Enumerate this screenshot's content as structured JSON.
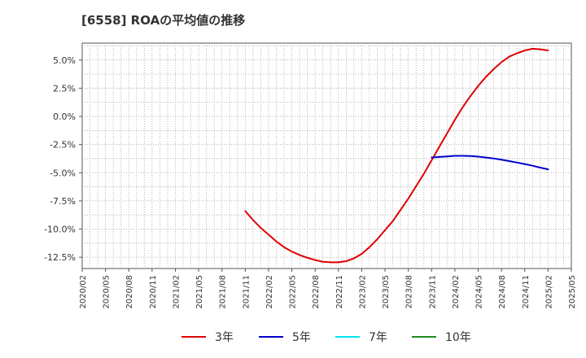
{
  "chart_data": {
    "type": "line",
    "title": "[6558]  ROAの平均値の推移",
    "xlabel": "",
    "ylabel": "",
    "ylim": [
      -13.5,
      6.5
    ],
    "yticks": [
      5.0,
      2.5,
      0.0,
      -2.5,
      -5.0,
      -7.5,
      -10.0,
      -12.5
    ],
    "ytick_labels": [
      "5.0%",
      "2.5%",
      "0.0%",
      "-2.5%",
      "-5.0%",
      "-7.5%",
      "-10.0%",
      "-12.5%"
    ],
    "x_range": [
      "2020/02",
      "2025/05"
    ],
    "xtick_labels": [
      "2020/02",
      "2020/05",
      "2020/08",
      "2020/11",
      "2021/02",
      "2021/05",
      "2021/08",
      "2021/11",
      "2022/02",
      "2022/05",
      "2022/08",
      "2022/11",
      "2023/02",
      "2023/05",
      "2023/08",
      "2023/11",
      "2024/02",
      "2024/05",
      "2024/08",
      "2024/11",
      "2025/02",
      "2025/05"
    ],
    "grid": true,
    "legend_position": "bottom",
    "series": [
      {
        "name": "3年",
        "color": "#dd0000",
        "x": [
          "2021/11",
          "2021/12",
          "2022/01",
          "2022/02",
          "2022/03",
          "2022/04",
          "2022/05",
          "2022/06",
          "2022/07",
          "2022/08",
          "2022/09",
          "2022/10",
          "2022/11",
          "2022/12",
          "2023/01",
          "2023/02",
          "2023/03",
          "2023/04",
          "2023/05",
          "2023/06",
          "2023/07",
          "2023/08",
          "2023/09",
          "2023/10",
          "2023/11",
          "2023/12",
          "2024/01",
          "2024/02",
          "2024/03",
          "2024/04",
          "2024/05",
          "2024/06",
          "2024/07",
          "2024/08",
          "2024/09",
          "2024/10",
          "2024/11",
          "2024/12",
          "2025/01",
          "2025/02"
        ],
        "values": [
          -8.4,
          -9.2,
          -9.9,
          -10.5,
          -11.1,
          -11.6,
          -12.0,
          -12.3,
          -12.55,
          -12.75,
          -12.9,
          -12.95,
          -12.95,
          -12.85,
          -12.6,
          -12.2,
          -11.6,
          -10.9,
          -10.1,
          -9.3,
          -8.3,
          -7.3,
          -6.2,
          -5.1,
          -3.9,
          -2.7,
          -1.5,
          -0.3,
          0.8,
          1.8,
          2.7,
          3.5,
          4.2,
          4.8,
          5.3,
          5.6,
          5.85,
          6.0,
          5.95,
          5.85
        ]
      },
      {
        "name": "5年",
        "color": "#0000cc",
        "x": [
          "2023/11",
          "2023/12",
          "2024/01",
          "2024/02",
          "2024/03",
          "2024/04",
          "2024/05",
          "2024/06",
          "2024/07",
          "2024/08",
          "2024/09",
          "2024/10",
          "2024/11",
          "2024/12",
          "2025/01",
          "2025/02"
        ],
        "values": [
          -3.65,
          -3.6,
          -3.55,
          -3.5,
          -3.5,
          -3.52,
          -3.57,
          -3.65,
          -3.74,
          -3.85,
          -3.97,
          -4.1,
          -4.23,
          -4.38,
          -4.55,
          -4.7
        ]
      },
      {
        "name": "7年",
        "color": "#00e5ee",
        "x": [],
        "values": []
      },
      {
        "name": "10年",
        "color": "#228b22",
        "x": [],
        "values": []
      }
    ]
  }
}
